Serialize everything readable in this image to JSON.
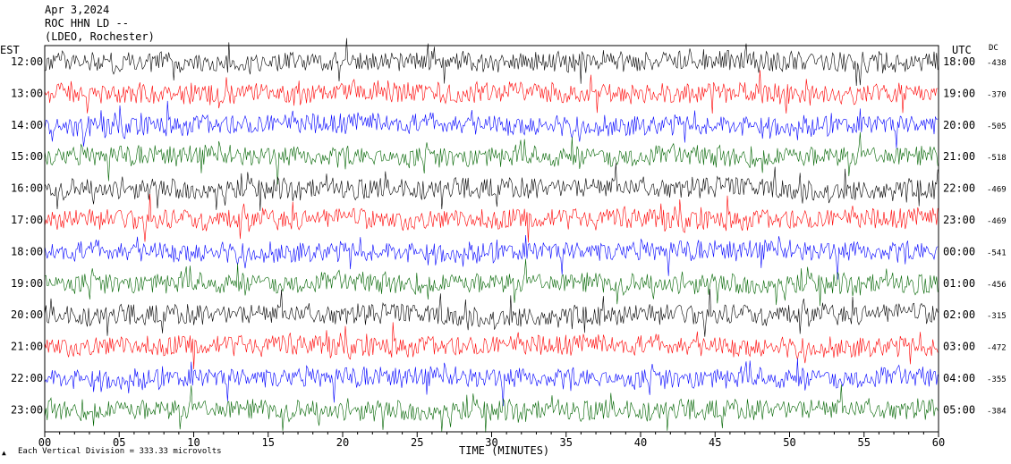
{
  "header": {
    "date": "Apr 3,2024",
    "station": "ROC HHN LD --",
    "network": "(LDEO, Rochester)"
  },
  "axis_labels": {
    "left": "EST",
    "right": "UTC",
    "dc": "DC",
    "x_title": "TIME (MINUTES)"
  },
  "footer": {
    "scale_note": "Each Vertical Division =  333.33 microvolts"
  },
  "colors": {
    "cycle": [
      "#000000",
      "#ff0000",
      "#0000ff",
      "#006400"
    ]
  },
  "chart_data": {
    "type": "line",
    "title": "",
    "xlabel": "TIME (MINUTES)",
    "xlim": [
      0,
      60
    ],
    "x_ticks": [
      "00",
      "05",
      "10",
      "15",
      "20",
      "25",
      "30",
      "35",
      "40",
      "45",
      "50",
      "55",
      "60"
    ],
    "rows": [
      {
        "est": "12:00",
        "utc": "18:00",
        "dc": "-438"
      },
      {
        "est": "13:00",
        "utc": "19:00",
        "dc": "-370"
      },
      {
        "est": "14:00",
        "utc": "20:00",
        "dc": "-505"
      },
      {
        "est": "15:00",
        "utc": "21:00",
        "dc": "-518"
      },
      {
        "est": "16:00",
        "utc": "22:00",
        "dc": "-469"
      },
      {
        "est": "17:00",
        "utc": "23:00",
        "dc": "-469"
      },
      {
        "est": "18:00",
        "utc": "00:00",
        "dc": "-541"
      },
      {
        "est": "19:00",
        "utc": "01:00",
        "dc": "-456"
      },
      {
        "est": "20:00",
        "utc": "02:00",
        "dc": "-315"
      },
      {
        "est": "21:00",
        "utc": "03:00",
        "dc": "-472"
      },
      {
        "est": "22:00",
        "utc": "04:00",
        "dc": "-355"
      },
      {
        "est": "23:00",
        "utc": "05:00",
        "dc": "-384"
      }
    ]
  }
}
